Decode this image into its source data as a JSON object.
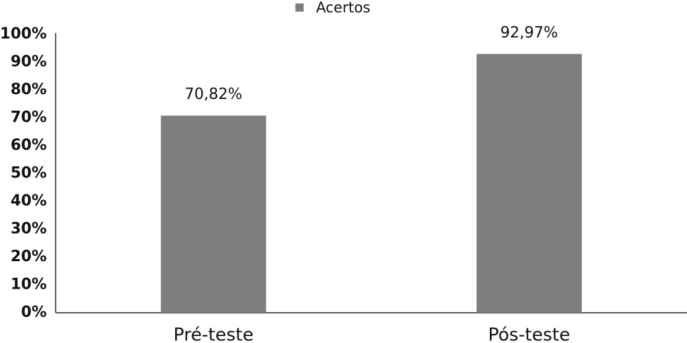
{
  "chart_data": {
    "type": "bar",
    "categories": [
      "Pré-teste",
      "Pós-teste"
    ],
    "series": [
      {
        "name": "Acertos",
        "color": "#7e7e81",
        "values": [
          70.82,
          92.97
        ],
        "value_labels": [
          "70,82%",
          "92,97%"
        ]
      }
    ],
    "ylim": [
      0,
      100
    ],
    "yticks": [
      {
        "value": 0,
        "label": "0%"
      },
      {
        "value": 10,
        "label": "10%"
      },
      {
        "value": 20,
        "label": "20%"
      },
      {
        "value": 30,
        "label": "30%"
      },
      {
        "value": 40,
        "label": "40%"
      },
      {
        "value": 50,
        "label": "50%"
      },
      {
        "value": 60,
        "label": "60%"
      },
      {
        "value": 70,
        "label": "70%"
      },
      {
        "value": 80,
        "label": "80%"
      },
      {
        "value": 90,
        "label": "90%"
      },
      {
        "value": 100,
        "label": "100%"
      }
    ],
    "grid": false,
    "legend": "top"
  }
}
